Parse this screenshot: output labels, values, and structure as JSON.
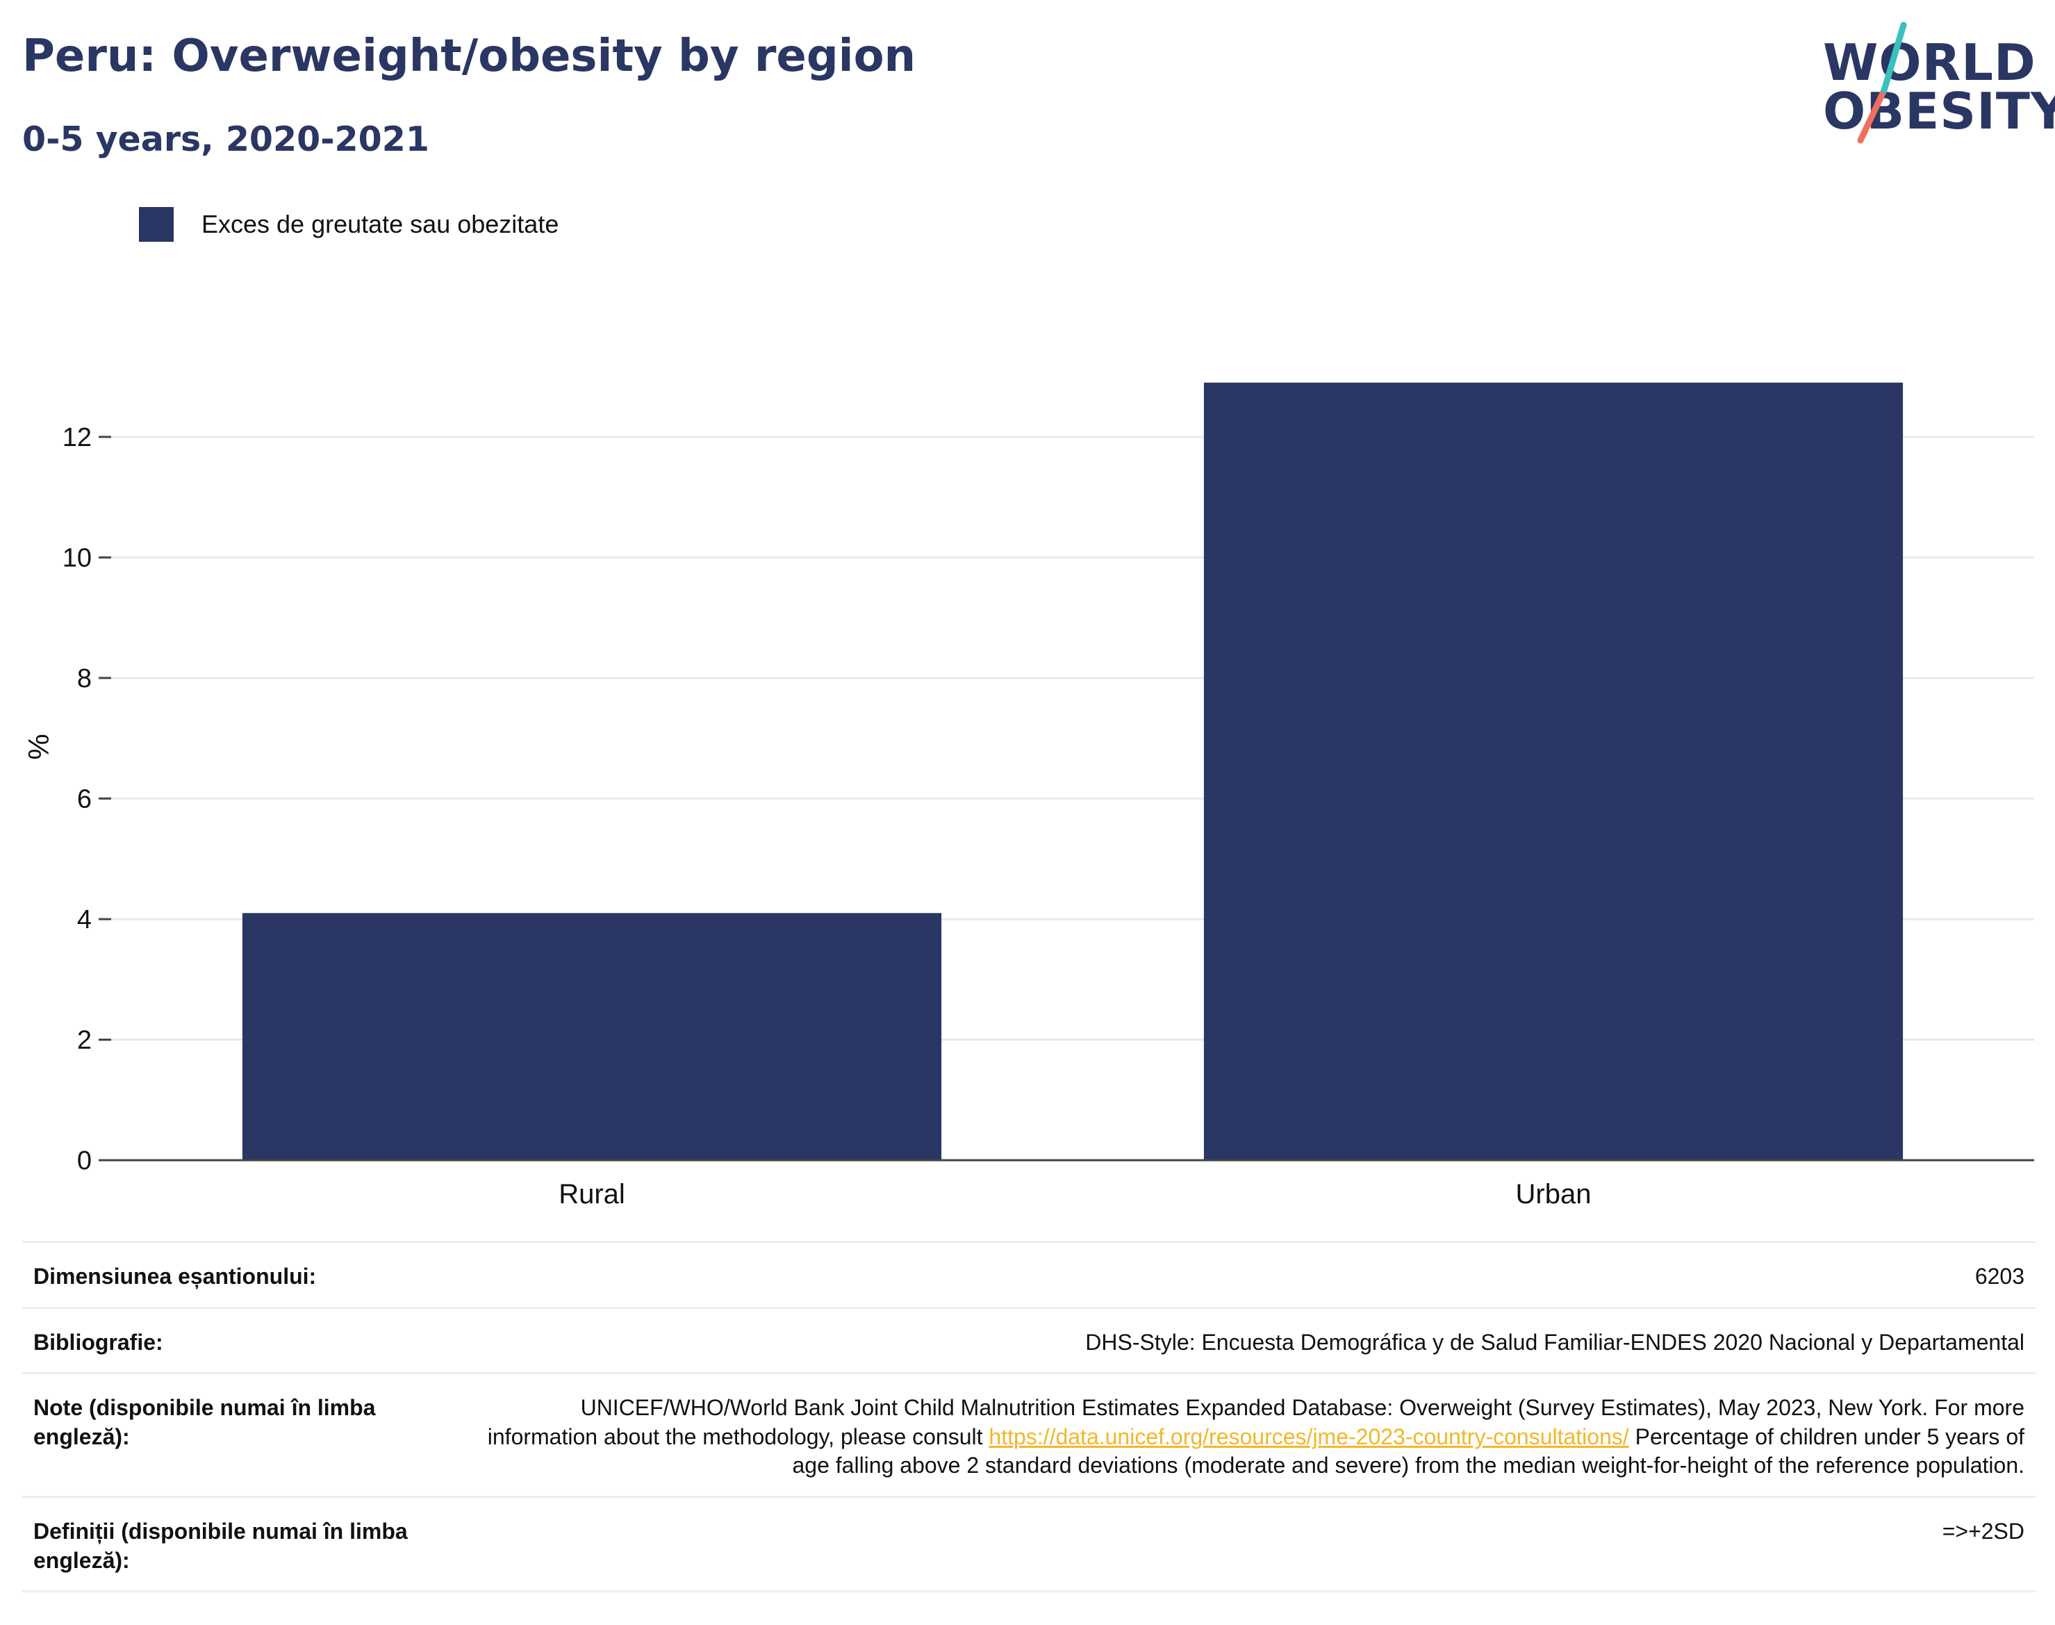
{
  "header": {
    "title": "Peru: Overweight/obesity by region",
    "subtitle": "0-5 years, 2020-2021"
  },
  "logo": {
    "line1": "WORLD",
    "line2": "OBESITY",
    "colors": {
      "navy": "#2a3663",
      "teal": "#3bbfbf",
      "coral": "#ef6f5e"
    }
  },
  "chart_data": {
    "type": "bar",
    "categories": [
      "Rural",
      "Urban"
    ],
    "series": [
      {
        "name": "Exces de greutate sau obezitate",
        "values": [
          4.1,
          12.9
        ],
        "color": "#2a3663"
      }
    ],
    "xlabel": "",
    "ylabel": "%",
    "ylim": [
      0,
      13.6
    ],
    "yticks": [
      0,
      2,
      4,
      6,
      8,
      10,
      12
    ],
    "grid": true,
    "legend_position": "top-left"
  },
  "footer": {
    "rows": [
      {
        "label": "Dimensiunea eșantionului:",
        "value": "6203"
      },
      {
        "label": "Bibliografie:",
        "value": "DHS-Style: Encuesta Demográfica y de Salud Familiar-ENDES 2020 Nacional y Departamental"
      },
      {
        "label": "Note (disponibile numai în limba engleză):",
        "value_pre": "UNICEF/WHO/World Bank Joint Child Malnutrition Estimates Expanded Database: Overweight (Survey Estimates), May 2023, New York. For more information about the methodology, please consult ",
        "link": "https://data.unicef.org/resources/jme-2023-country-consultations/",
        "value_post": " Percentage of children under 5 years of age falling above 2 standard deviations (moderate and severe) from the median weight-for-height of the reference population."
      },
      {
        "label": "Definiții (disponibile numai în limba engleză):",
        "value": "=>+2SD"
      }
    ]
  }
}
